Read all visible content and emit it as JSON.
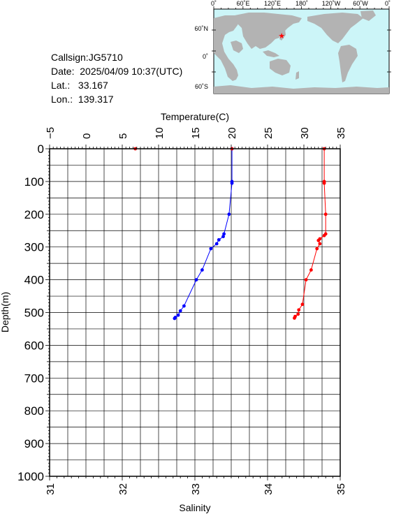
{
  "header": {
    "callsign_line": "Callsign:JG5710",
    "date_line": "Date:  2025/04/09 10:37(UTC)",
    "lat_line": "Lat.:   33.167",
    "lon_line": "Lon.:  139.317"
  },
  "map": {
    "top_labels": [
      "0˚",
      "60˚E",
      "120˚E",
      "180˚",
      "120˚W",
      "60˚W",
      "0˚"
    ],
    "lat_labels": [
      "60˚N",
      "0˚",
      "60˚S"
    ],
    "ocean_color": "#ccf5f8",
    "land_color": "#b3b3b3",
    "marker_color": "#ff0000",
    "marker": {
      "lon": 139.317,
      "lat": 33.167
    }
  },
  "chart_data": {
    "type": "line",
    "ylabel": "Depth(m)",
    "ylim": [
      1000,
      0
    ],
    "yticks": [
      "0",
      "100",
      "200",
      "300",
      "400",
      "500",
      "600",
      "700",
      "800",
      "900",
      "1000"
    ],
    "temperature_axis": {
      "label": "Temperature(C)",
      "range": [
        -5,
        35
      ],
      "ticks": [
        "−5",
        "0",
        "5",
        "10",
        "15",
        "20",
        "25",
        "30",
        "35"
      ]
    },
    "salinity_axis": {
      "label": "Salinity",
      "range": [
        31,
        35
      ],
      "ticks": [
        "31",
        "32",
        "33",
        "34",
        "35"
      ]
    },
    "grid": true,
    "series": [
      {
        "axis": "temperature",
        "color": "#0000ff",
        "points": [
          [
            20.1,
            0
          ],
          [
            20.1,
            100
          ],
          [
            20.1,
            105
          ],
          [
            19.7,
            200
          ],
          [
            19.0,
            260
          ],
          [
            18.9,
            268
          ],
          [
            18.3,
            278
          ],
          [
            18.0,
            290
          ],
          [
            17.2,
            305
          ],
          [
            16.0,
            370
          ],
          [
            15.2,
            400
          ],
          [
            13.5,
            480
          ],
          [
            13.0,
            495
          ],
          [
            12.7,
            508
          ],
          [
            12.3,
            515
          ],
          [
            12.2,
            518
          ]
        ]
      },
      {
        "axis": "temperature",
        "color": "#ff0000",
        "points": [
          [
            6.8,
            0
          ],
          [
            20.1,
            0
          ]
        ]
      },
      {
        "axis": "salinity",
        "color": "#ff0000",
        "points": [
          [
            34.78,
            0
          ],
          [
            34.78,
            100
          ],
          [
            34.78,
            105
          ],
          [
            34.8,
            200
          ],
          [
            34.8,
            260
          ],
          [
            34.78,
            265
          ],
          [
            34.72,
            275
          ],
          [
            34.7,
            280
          ],
          [
            34.72,
            290
          ],
          [
            34.68,
            305
          ],
          [
            34.6,
            370
          ],
          [
            34.53,
            400
          ],
          [
            34.48,
            475
          ],
          [
            34.43,
            492
          ],
          [
            34.42,
            505
          ],
          [
            34.38,
            512
          ],
          [
            34.37,
            517
          ]
        ]
      }
    ]
  }
}
